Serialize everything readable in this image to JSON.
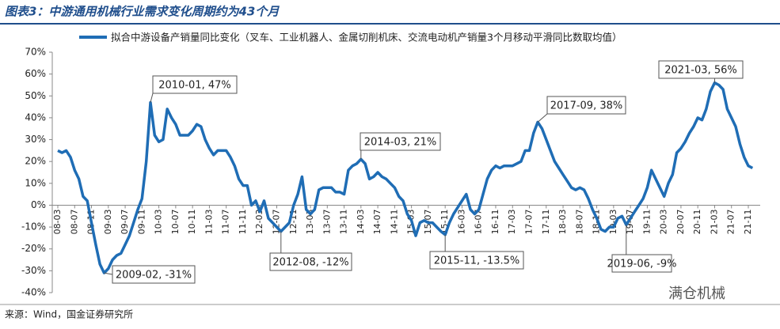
{
  "chart_data": {
    "type": "line",
    "title": "图表3：中游通用机械行业需求变化周期约为43个月",
    "source": "来源：Wind，国金证券研究所",
    "watermark": "满仓机械",
    "series": [
      {
        "name": "拟合中游设备产销量同比变化（叉车、工业机器人、金属切削机床、交流电动机产销量3个月移动平滑同比数取均值）",
        "color": "#1f6db5",
        "values": [
          25,
          24,
          25,
          22,
          16,
          12,
          4,
          2,
          -8,
          -18,
          -27,
          -31,
          -29,
          -25,
          -23,
          -22,
          -18,
          -14,
          -8,
          -2,
          3,
          20,
          47,
          32,
          29,
          30,
          44,
          40,
          37,
          32,
          32,
          32,
          34,
          37,
          36,
          30,
          26,
          23,
          25,
          25,
          25,
          22,
          18,
          12,
          9,
          9,
          0,
          2,
          -3,
          2,
          -6,
          -8,
          -10,
          -12,
          -10,
          -8,
          0,
          5,
          13,
          -2,
          -4,
          -2,
          7,
          8,
          8,
          8,
          6,
          6,
          5,
          16,
          18,
          19,
          21,
          19,
          12,
          13,
          15,
          13,
          12,
          10,
          8,
          4,
          2,
          -4,
          -7,
          -14,
          -8,
          -7,
          -8,
          -8,
          -10,
          -12,
          -13.5,
          -8,
          -4,
          -1,
          2,
          5,
          -2,
          -4,
          -2,
          5,
          12,
          16,
          18,
          17,
          18,
          18,
          18,
          19,
          20,
          25,
          25,
          33,
          38,
          35,
          30,
          25,
          20,
          17,
          14,
          11,
          8,
          7,
          8,
          7,
          3,
          -2,
          -6,
          -11,
          -12,
          -10,
          -10,
          -6,
          -5,
          -9,
          -6,
          -3,
          0,
          3,
          8,
          16,
          12,
          8,
          4,
          10,
          14,
          24,
          26,
          29,
          33,
          36,
          40,
          39,
          44,
          52,
          56,
          55,
          53,
          44,
          40,
          36,
          28,
          22,
          18,
          17
        ]
      }
    ],
    "categories": [
      "08-03",
      null,
      null,
      null,
      "08-07",
      null,
      null,
      null,
      "08-11",
      null,
      null,
      null,
      "09-03",
      null,
      null,
      null,
      "09-07",
      null,
      null,
      null,
      "09-11",
      null,
      null,
      null,
      "10-03",
      null,
      null,
      null,
      "10-07",
      null,
      null,
      null,
      "10-11",
      null,
      null,
      null,
      "11-03",
      null,
      null,
      null,
      "11-07",
      null,
      null,
      null,
      "11-11",
      null,
      null,
      null,
      "12-03",
      null,
      null,
      null,
      "12-07",
      null,
      null,
      null,
      "12-11",
      null,
      null,
      null,
      "13-03",
      null,
      null,
      null,
      "13-07",
      null,
      null,
      null,
      "13-11",
      null,
      null,
      null,
      "14-03",
      null,
      null,
      null,
      "14-07",
      null,
      null,
      null,
      "14-11",
      null,
      null,
      null,
      "15-03",
      null,
      null,
      null,
      "15-07",
      null,
      null,
      null,
      "15-11",
      null,
      null,
      null,
      "16-03",
      null,
      null,
      null,
      "16-07",
      null,
      null,
      null,
      "16-11",
      null,
      null,
      null,
      "17-03",
      null,
      null,
      null,
      "17-07",
      null,
      null,
      null,
      "17-11",
      null,
      null,
      null,
      "18-03",
      null,
      null,
      null,
      "18-07",
      null,
      null,
      null,
      "18-11",
      null,
      null,
      null,
      "19-03",
      null,
      null,
      null,
      "19-07",
      null,
      null,
      null,
      "19-11",
      null,
      null,
      null,
      "20-03",
      null,
      null,
      null,
      "20-07",
      null,
      null,
      null,
      "20-11",
      null,
      null,
      null,
      "21-03",
      null,
      null,
      null,
      "21-07",
      null,
      null,
      null,
      "21-11",
      null
    ],
    "ylim": [
      -40,
      70
    ],
    "yticks": [
      {
        "value": 70,
        "label": "70%"
      },
      {
        "value": 60,
        "label": "60%"
      },
      {
        "value": 50,
        "label": "50%"
      },
      {
        "value": 40,
        "label": "40%"
      },
      {
        "value": 30,
        "label": "30%"
      },
      {
        "value": 20,
        "label": "20%"
      },
      {
        "value": 10,
        "label": "10%"
      },
      {
        "value": 0,
        "label": "0%"
      },
      {
        "value": -10,
        "label": "-10%"
      },
      {
        "value": -20,
        "label": "-20%"
      },
      {
        "value": -30,
        "label": "-30%"
      },
      {
        "value": -40,
        "label": "-40%"
      }
    ],
    "annotations": [
      "2010-01, 47%",
      "2009-02, -31%",
      "2012-08, -12%",
      "2014-03, 21%",
      "2015-11, -13.5%",
      "2017-09, 38%",
      "2019-06, -9%",
      "2021-03, 56%"
    ]
  }
}
